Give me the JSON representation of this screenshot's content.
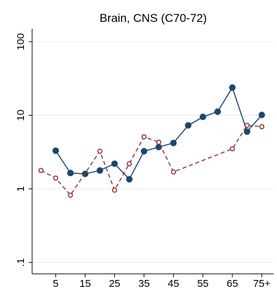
{
  "chart_data": {
    "type": "line",
    "title": "Brain, CNS (C70-72)",
    "log_y": true,
    "grid": true,
    "xlim": [
      -3,
      79
    ],
    "ylim": [
      0.07,
      150
    ],
    "xticks": [
      5,
      15,
      25,
      35,
      45,
      55,
      65,
      {
        "value": 75,
        "label": "75+"
      }
    ],
    "yticks": [
      {
        "value": 0.1,
        "label": ".1"
      },
      1,
      10,
      100
    ],
    "series": [
      {
        "color": "#1a476f",
        "style": "solid",
        "marker": "filled",
        "x": [
          5,
          10,
          15,
          20,
          25,
          30,
          35,
          40,
          45,
          50,
          55,
          60,
          65,
          70,
          75
        ],
        "values": [
          3.3,
          1.64,
          1.6,
          1.78,
          2.2,
          1.35,
          3.25,
          3.7,
          4.2,
          7.3,
          9.5,
          11.2,
          23.8,
          6.0,
          10.1
        ]
      },
      {
        "color": "#90353b",
        "style": "dashed",
        "marker": "hollow",
        "x": [
          0,
          5,
          10,
          20,
          25,
          30,
          35,
          40,
          45,
          65,
          70,
          75
        ],
        "values": [
          1.78,
          1.4,
          0.82,
          3.25,
          0.96,
          2.2,
          5.1,
          4.3,
          1.7,
          3.5,
          7.3,
          7.0
        ]
      }
    ]
  }
}
